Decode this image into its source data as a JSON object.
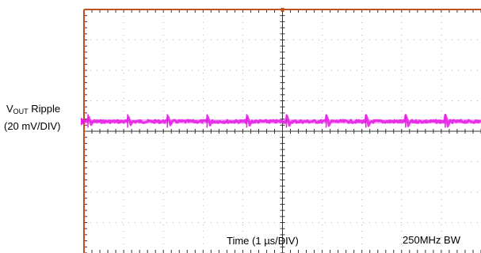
{
  "chart_data": {
    "type": "line",
    "title": "",
    "grid": true,
    "grid_divisions": {
      "x": 10,
      "y": 8
    },
    "xlabel": "Time (1 µs/DIV)",
    "ylabel_main": "V",
    "ylabel_sub": "OUT",
    "ylabel_suffix": " Ripple",
    "ylabel_scale": "(20 mV/DIV)",
    "bandwidth": "250MHz BW",
    "xlim": [
      0,
      10
    ],
    "ylim": [
      -4,
      4
    ],
    "ylim_unit": "divisions",
    "series": [
      {
        "color": "#e619e6",
        "dc_offset_div": 0.32,
        "ripple_peak_to_peak_div": 0.2,
        "spike_positions_div": [
          0.1,
          1.1,
          2.1,
          3.1,
          4.1,
          5.1,
          6.1,
          7.1,
          8.1,
          9.1
        ]
      }
    ]
  },
  "colors": {
    "frame": "#c0501e",
    "grid": "#9a9a9a",
    "center": "#333333",
    "trace": "#e619e6"
  },
  "marker": {
    "ground_marker_color": "#e619e6"
  }
}
